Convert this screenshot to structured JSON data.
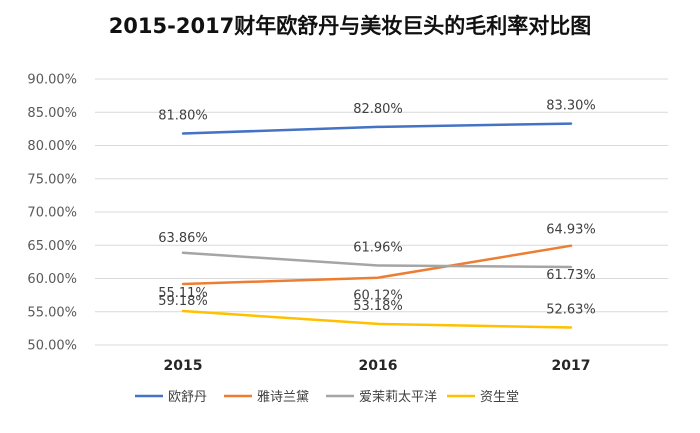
{
  "chart_data": {
    "type": "line",
    "title": "2015-2017财年欧舒丹与美妆巨头的毛利率对比图",
    "xlabel": "",
    "ylabel": "",
    "categories": [
      "2015",
      "2016",
      "2017"
    ],
    "ylim": [
      50,
      90
    ],
    "yticks": [
      "50.00%",
      "55.00%",
      "60.00%",
      "65.00%",
      "70.00%",
      "75.00%",
      "80.00%",
      "85.00%",
      "90.00%"
    ],
    "grid": true,
    "legend": "bottom",
    "series": [
      {
        "name": "欧舒丹",
        "color": "#4472C4",
        "values": [
          81.8,
          82.8,
          83.3
        ],
        "labels": [
          "81.80%",
          "82.80%",
          "83.30%"
        ]
      },
      {
        "name": "雅诗兰黛",
        "color": "#ED7D31",
        "values": [
          59.18,
          60.12,
          64.93
        ],
        "labels": [
          "59.18%",
          "60.12%",
          "64.93%"
        ]
      },
      {
        "name": "爱茉莉太平洋",
        "color": "#A5A5A5",
        "values": [
          63.86,
          61.96,
          61.73
        ],
        "labels": [
          "63.86%",
          "61.96%",
          "61.73%"
        ]
      },
      {
        "name": "资生堂",
        "color": "#FFC000",
        "values": [
          55.11,
          53.18,
          52.63
        ],
        "labels": [
          "55.11%",
          "53.18%",
          "52.63%"
        ]
      }
    ]
  }
}
